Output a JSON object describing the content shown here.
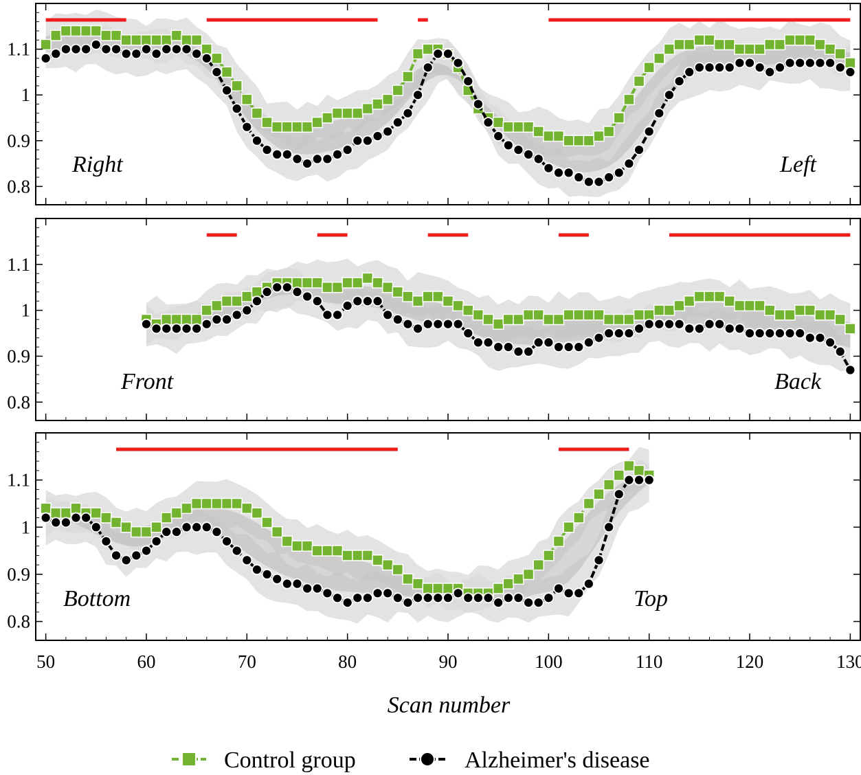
{
  "chart_data": [
    {
      "type": "line",
      "panel": "top",
      "region_labels": [
        "Right",
        "Left"
      ],
      "xlim": [
        49,
        131
      ],
      "ylim": [
        0.76,
        1.2
      ],
      "yticks": [
        0.8,
        0.9,
        1.0,
        1.1
      ],
      "ytick_labels": [
        "0.8",
        "0.9",
        "1",
        "1.1"
      ],
      "significance_intervals": [
        [
          50,
          58
        ],
        [
          66,
          83
        ],
        [
          87,
          88
        ],
        [
          100,
          130
        ]
      ],
      "series": [
        {
          "name": "Control group",
          "x_start": 50,
          "values": [
            1.11,
            1.13,
            1.14,
            1.14,
            1.14,
            1.14,
            1.13,
            1.13,
            1.12,
            1.12,
            1.12,
            1.12,
            1.12,
            1.13,
            1.12,
            1.12,
            1.1,
            1.08,
            1.05,
            1.02,
            0.99,
            0.96,
            0.94,
            0.93,
            0.93,
            0.93,
            0.93,
            0.94,
            0.95,
            0.96,
            0.96,
            0.96,
            0.97,
            0.98,
            0.99,
            1.01,
            1.04,
            1.09,
            1.1,
            1.1,
            1.09,
            1.06,
            1.01,
            0.97,
            0.95,
            0.94,
            0.93,
            0.93,
            0.93,
            0.92,
            0.91,
            0.91,
            0.9,
            0.9,
            0.9,
            0.91,
            0.92,
            0.95,
            0.99,
            1.03,
            1.06,
            1.08,
            1.1,
            1.11,
            1.11,
            1.12,
            1.12,
            1.11,
            1.11,
            1.1,
            1.1,
            1.1,
            1.11,
            1.11,
            1.12,
            1.12,
            1.12,
            1.11,
            1.1,
            1.09,
            1.07
          ]
        },
        {
          "name": "Alzheimer's disease",
          "x_start": 50,
          "values": [
            1.08,
            1.09,
            1.1,
            1.1,
            1.1,
            1.11,
            1.1,
            1.1,
            1.09,
            1.09,
            1.1,
            1.09,
            1.1,
            1.1,
            1.1,
            1.09,
            1.08,
            1.05,
            1.01,
            0.97,
            0.93,
            0.9,
            0.88,
            0.87,
            0.87,
            0.86,
            0.85,
            0.86,
            0.86,
            0.87,
            0.88,
            0.9,
            0.9,
            0.91,
            0.92,
            0.94,
            0.96,
            1.0,
            1.06,
            1.09,
            1.09,
            1.07,
            1.03,
            0.98,
            0.94,
            0.91,
            0.89,
            0.88,
            0.87,
            0.86,
            0.84,
            0.83,
            0.83,
            0.82,
            0.81,
            0.81,
            0.82,
            0.83,
            0.85,
            0.88,
            0.92,
            0.96,
            1.0,
            1.03,
            1.05,
            1.06,
            1.06,
            1.06,
            1.06,
            1.07,
            1.07,
            1.06,
            1.05,
            1.06,
            1.07,
            1.07,
            1.07,
            1.07,
            1.07,
            1.06,
            1.05
          ]
        }
      ]
    },
    {
      "type": "line",
      "panel": "middle",
      "region_labels": [
        "Front",
        "Back"
      ],
      "xlim": [
        49,
        131
      ],
      "ylim": [
        0.76,
        1.2
      ],
      "yticks": [
        0.8,
        0.9,
        1.0,
        1.1
      ],
      "ytick_labels": [
        "0.8",
        "0.9",
        "1",
        "1.1"
      ],
      "significance_intervals": [
        [
          66,
          69
        ],
        [
          77,
          80
        ],
        [
          88,
          92
        ],
        [
          101,
          104
        ],
        [
          112,
          130
        ]
      ],
      "series": [
        {
          "name": "Control group",
          "x_start": 60,
          "values": [
            0.98,
            0.97,
            0.98,
            0.98,
            0.98,
            0.98,
            1.0,
            1.01,
            1.02,
            1.02,
            1.03,
            1.04,
            1.05,
            1.06,
            1.06,
            1.06,
            1.06,
            1.06,
            1.05,
            1.05,
            1.06,
            1.06,
            1.07,
            1.06,
            1.05,
            1.04,
            1.03,
            1.02,
            1.03,
            1.03,
            1.02,
            1.01,
            1.0,
            0.99,
            0.98,
            0.97,
            0.98,
            0.98,
            0.99,
            0.99,
            0.98,
            0.98,
            0.99,
            0.99,
            0.99,
            0.99,
            0.98,
            0.98,
            0.98,
            0.99,
            0.99,
            1.0,
            1.0,
            1.01,
            1.02,
            1.03,
            1.03,
            1.03,
            1.02,
            1.01,
            1.01,
            1.01,
            1.0,
            0.99,
            0.99,
            1.0,
            1.0,
            0.99,
            0.99,
            0.98,
            0.96
          ]
        },
        {
          "name": "Alzheimer's disease",
          "x_start": 60,
          "values": [
            0.97,
            0.96,
            0.96,
            0.96,
            0.96,
            0.96,
            0.97,
            0.98,
            0.98,
            0.99,
            1.0,
            1.02,
            1.04,
            1.05,
            1.05,
            1.04,
            1.03,
            1.02,
            0.99,
            0.99,
            1.01,
            1.02,
            1.02,
            1.02,
            0.99,
            0.98,
            0.97,
            0.96,
            0.97,
            0.97,
            0.97,
            0.97,
            0.95,
            0.93,
            0.93,
            0.92,
            0.92,
            0.91,
            0.91,
            0.93,
            0.93,
            0.92,
            0.92,
            0.92,
            0.93,
            0.94,
            0.95,
            0.95,
            0.95,
            0.96,
            0.97,
            0.97,
            0.97,
            0.97,
            0.96,
            0.96,
            0.97,
            0.97,
            0.96,
            0.96,
            0.95,
            0.95,
            0.95,
            0.95,
            0.95,
            0.95,
            0.94,
            0.94,
            0.93,
            0.91,
            0.87
          ]
        }
      ]
    },
    {
      "type": "line",
      "panel": "bottom",
      "region_labels": [
        "Bottom",
        "Top"
      ],
      "xlim": [
        49,
        131
      ],
      "ylim": [
        0.76,
        1.2
      ],
      "yticks": [
        0.8,
        0.9,
        1.0,
        1.1
      ],
      "ytick_labels": [
        "0.8",
        "0.9",
        "1",
        "1.1"
      ],
      "significance_intervals": [
        [
          57,
          85
        ],
        [
          101,
          108
        ]
      ],
      "series": [
        {
          "name": "Control group",
          "x_start": 50,
          "values": [
            1.04,
            1.03,
            1.03,
            1.04,
            1.03,
            1.03,
            1.02,
            1.01,
            1.0,
            0.99,
            0.99,
            1.0,
            1.02,
            1.03,
            1.04,
            1.05,
            1.05,
            1.05,
            1.05,
            1.05,
            1.04,
            1.03,
            1.01,
            0.99,
            0.97,
            0.96,
            0.96,
            0.95,
            0.95,
            0.95,
            0.94,
            0.94,
            0.94,
            0.93,
            0.92,
            0.91,
            0.89,
            0.88,
            0.87,
            0.87,
            0.87,
            0.87,
            0.86,
            0.86,
            0.86,
            0.87,
            0.88,
            0.89,
            0.9,
            0.92,
            0.94,
            0.97,
            1.0,
            1.02,
            1.05,
            1.07,
            1.09,
            1.11,
            1.13,
            1.12,
            1.11
          ]
        },
        {
          "name": "Alzheimer's disease",
          "x_start": 50,
          "values": [
            1.02,
            1.01,
            1.01,
            1.02,
            1.02,
            1.0,
            0.97,
            0.94,
            0.93,
            0.94,
            0.95,
            0.97,
            0.99,
            0.99,
            1.0,
            1.0,
            1.0,
            0.99,
            0.97,
            0.95,
            0.93,
            0.91,
            0.9,
            0.89,
            0.88,
            0.88,
            0.87,
            0.87,
            0.86,
            0.85,
            0.84,
            0.85,
            0.85,
            0.86,
            0.86,
            0.85,
            0.84,
            0.85,
            0.85,
            0.85,
            0.85,
            0.86,
            0.85,
            0.85,
            0.85,
            0.84,
            0.85,
            0.85,
            0.84,
            0.84,
            0.85,
            0.87,
            0.86,
            0.86,
            0.88,
            0.93,
            1.0,
            1.07,
            1.1,
            1.1,
            1.1
          ]
        }
      ]
    }
  ],
  "xaxis": {
    "title": "Scan number",
    "ticks": [
      50,
      60,
      70,
      80,
      90,
      100,
      110,
      120,
      130
    ],
    "tick_labels": [
      "50",
      "60",
      "70",
      "80",
      "90",
      "100",
      "110",
      "120",
      "130"
    ]
  },
  "legend": {
    "placement": "bottom-center",
    "entries": [
      {
        "label": "Control group",
        "marker": "square",
        "color": "#72b32f"
      },
      {
        "label": "Alzheimer's disease",
        "marker": "circle",
        "color": "#000000"
      }
    ]
  },
  "colors": {
    "control": "#72b32f",
    "alzheimer": "#000000",
    "significance": "#ee1c1c",
    "band": "#d6d6d6",
    "band_overlap": "#b4b4b4"
  }
}
